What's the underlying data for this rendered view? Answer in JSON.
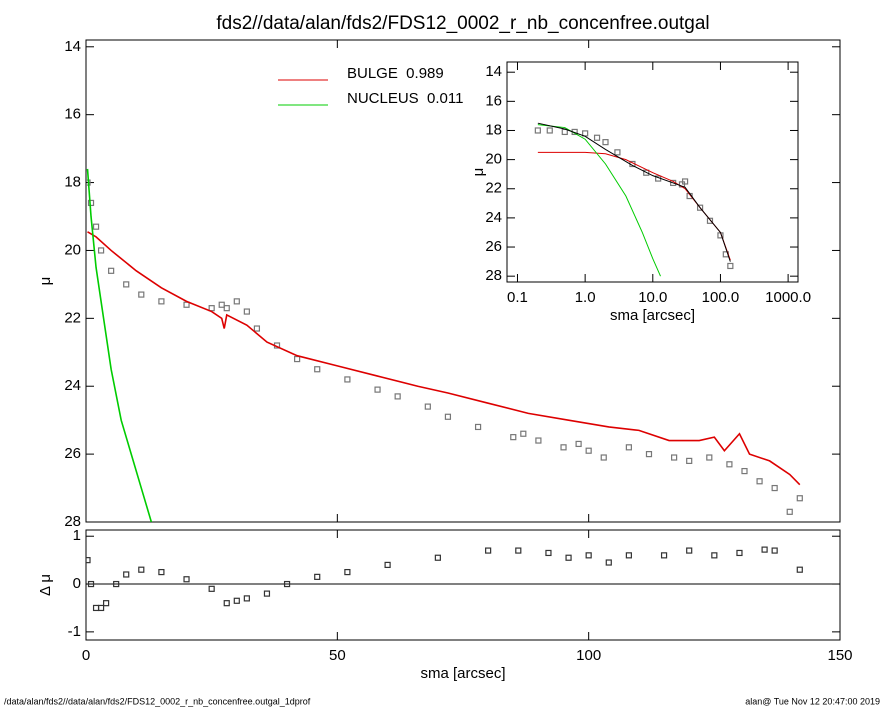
{
  "chart_data": [
    {
      "type": "scatter",
      "title": "fds2//data/alan/fds2/FDS12_0002_r_nb_concenfree.outgal",
      "y_label": "μ",
      "xlim": [
        0,
        150
      ],
      "xticks": [
        0,
        50,
        100,
        150
      ],
      "ylim": [
        28,
        13.8
      ],
      "yticks": [
        14,
        16,
        18,
        20,
        22,
        24,
        26,
        28
      ],
      "legend": "top",
      "series": [
        {
          "style": "points",
          "color": "#777777",
          "x": [
            0.3,
            1,
            2,
            3,
            5,
            8,
            11,
            15,
            20,
            25,
            27,
            28,
            30,
            32,
            34,
            38,
            42,
            46,
            52,
            58,
            62,
            68,
            72,
            78,
            85,
            87,
            90,
            95,
            98,
            100,
            103,
            108,
            112,
            117,
            120,
            124,
            128,
            131,
            134,
            137,
            140,
            142
          ],
          "values": [
            18.0,
            18.6,
            19.3,
            20.0,
            20.6,
            21.0,
            21.3,
            21.5,
            21.6,
            21.7,
            21.6,
            21.7,
            21.5,
            21.8,
            22.3,
            22.8,
            23.2,
            23.5,
            23.8,
            24.1,
            24.3,
            24.6,
            24.9,
            25.2,
            25.5,
            25.4,
            25.6,
            25.8,
            25.7,
            25.9,
            26.1,
            25.8,
            26.0,
            26.1,
            26.2,
            26.1,
            26.3,
            26.5,
            26.8,
            27.0,
            27.7,
            27.3
          ]
        },
        {
          "style": "line",
          "name": "BULGE  0.989",
          "color": "#dd0000",
          "x": [
            0.3,
            2,
            5,
            10,
            15,
            20,
            25,
            27,
            27.5,
            28,
            32,
            36,
            42,
            50,
            58,
            66,
            72,
            80,
            88,
            96,
            104,
            110,
            116,
            122,
            125,
            127,
            130,
            132,
            136,
            140,
            142
          ],
          "values": [
            19.45,
            19.6,
            20.0,
            20.6,
            21.1,
            21.5,
            21.8,
            22.0,
            22.3,
            21.9,
            22.2,
            22.7,
            23.1,
            23.4,
            23.7,
            24.0,
            24.2,
            24.5,
            24.8,
            25.0,
            25.2,
            25.3,
            25.6,
            25.6,
            25.5,
            25.9,
            25.4,
            26.0,
            26.2,
            26.6,
            26.9
          ]
        },
        {
          "style": "line",
          "name": "NUCLEUS  0.011",
          "color": "#00cc00",
          "x": [
            0.3,
            1,
            2,
            3.5,
            5,
            7,
            9,
            11,
            13
          ],
          "values": [
            17.6,
            19.0,
            20.5,
            22.0,
            23.5,
            25.0,
            26.0,
            27.0,
            28.0
          ]
        }
      ]
    },
    {
      "type": "scatter",
      "x_label": "sma [arcsec]",
      "y_label": "Δ μ",
      "xlim": [
        0,
        150
      ],
      "xticks": [
        0,
        50,
        100,
        150
      ],
      "ylim": [
        -1.17,
        1.13
      ],
      "yticks": [
        -1,
        0,
        1
      ],
      "reference_line": 0,
      "series": [
        {
          "style": "points",
          "color": "#333333",
          "x": [
            0.3,
            1,
            2,
            3,
            4,
            6,
            8,
            11,
            15,
            20,
            25,
            28,
            30,
            32,
            36,
            40,
            46,
            52,
            60,
            70,
            80,
            86,
            92,
            96,
            100,
            104,
            108,
            115,
            120,
            125,
            130,
            135,
            137,
            142
          ],
          "values": [
            0.5,
            0.0,
            -0.5,
            -0.5,
            -0.4,
            0.0,
            0.2,
            0.3,
            0.25,
            0.1,
            -0.1,
            -0.4,
            -0.35,
            -0.3,
            -0.2,
            0.0,
            0.15,
            0.25,
            0.4,
            0.55,
            0.7,
            0.7,
            0.65,
            0.55,
            0.6,
            0.45,
            0.6,
            0.6,
            0.7,
            0.6,
            0.65,
            0.72,
            0.7,
            0.3
          ]
        }
      ]
    },
    {
      "type": "scatter",
      "x_label": "sma [arcsec]",
      "y_label": "μ",
      "xscale": "log",
      "xlim": [
        0.07,
        1400
      ],
      "xticks": [
        0.1,
        {
          "value": 1,
          "label": "1.0"
        },
        {
          "value": 10,
          "label": "10.0"
        },
        {
          "value": 100,
          "label": "100.0"
        },
        {
          "value": 1000,
          "label": "1000.0"
        }
      ],
      "ylim": [
        28.4,
        13.3
      ],
      "yticks": [
        14,
        16,
        18,
        20,
        22,
        24,
        26,
        28
      ],
      "series": [
        {
          "style": "points",
          "color": "#777777",
          "x": [
            0.2,
            0.3,
            0.5,
            0.7,
            1,
            1.5,
            2,
            3,
            5,
            8,
            12,
            20,
            27,
            30,
            35,
            50,
            70,
            100,
            120,
            140
          ],
          "values": [
            18.0,
            18.0,
            18.1,
            18.1,
            18.2,
            18.5,
            18.8,
            19.5,
            20.3,
            20.9,
            21.3,
            21.6,
            21.7,
            21.5,
            22.5,
            23.3,
            24.2,
            25.2,
            26.5,
            27.3
          ]
        },
        {
          "style": "line",
          "color": "#dd0000",
          "x": [
            0.2,
            1,
            2,
            4,
            10,
            20,
            30,
            50,
            100,
            140
          ],
          "values": [
            19.5,
            19.5,
            19.6,
            20.0,
            20.9,
            21.5,
            22.0,
            23.3,
            25.0,
            26.9
          ]
        },
        {
          "style": "line",
          "color": "#00cc00",
          "x": [
            0.2,
            0.5,
            1,
            2,
            4,
            7,
            10,
            13
          ],
          "values": [
            17.6,
            17.8,
            18.6,
            20.3,
            22.5,
            25.0,
            26.8,
            28.0
          ]
        },
        {
          "style": "line",
          "color": "#000000",
          "x": [
            0.2,
            0.5,
            1,
            2,
            5,
            10,
            20,
            30,
            50,
            100,
            140
          ],
          "values": [
            17.5,
            17.9,
            18.4,
            19.3,
            20.4,
            21.1,
            21.6,
            21.9,
            23.3,
            25.0,
            27.0
          ]
        }
      ]
    }
  ],
  "footer": {
    "left": "/data/alan/fds2//data/alan/fds2/FDS12_0002_r_nb_concenfree.outgal_1dprof",
    "right": "alan@  Tue Nov 12 20:47:00 2019"
  }
}
